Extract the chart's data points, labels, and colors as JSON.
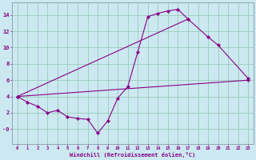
{
  "background_color": "#cce8f0",
  "line_color": "#880088",
  "grid_color": "#99ccbb",
  "xlabel": "Windchill (Refroidissement éolien,°C)",
  "xlim": [
    -0.5,
    23.5
  ],
  "ylim": [
    -1.8,
    15.5
  ],
  "xticks": [
    0,
    1,
    2,
    3,
    4,
    5,
    6,
    7,
    8,
    9,
    10,
    11,
    12,
    13,
    14,
    15,
    16,
    17,
    18,
    19,
    20,
    21,
    22,
    23
  ],
  "yticks": [
    0,
    2,
    4,
    6,
    8,
    10,
    12,
    14
  ],
  "ytick_labels": [
    "-0",
    "2",
    "4",
    "6",
    "8",
    "10",
    "12",
    "14"
  ],
  "line1_x": [
    0,
    1,
    2,
    3,
    4,
    5,
    6,
    7,
    8,
    9,
    10,
    11,
    12,
    13,
    14,
    15,
    16,
    17
  ],
  "line1_y": [
    4.0,
    3.3,
    2.8,
    2.0,
    2.3,
    1.5,
    1.3,
    1.2,
    -0.5,
    1.0,
    3.8,
    5.2,
    9.5,
    13.8,
    14.2,
    14.5,
    14.7,
    13.5
  ],
  "line2_x": [
    0,
    17,
    19,
    20,
    23
  ],
  "line2_y": [
    4.0,
    13.5,
    11.3,
    10.3,
    6.2
  ],
  "line3_x": [
    0,
    23
  ],
  "line3_y": [
    4.0,
    6.0
  ]
}
